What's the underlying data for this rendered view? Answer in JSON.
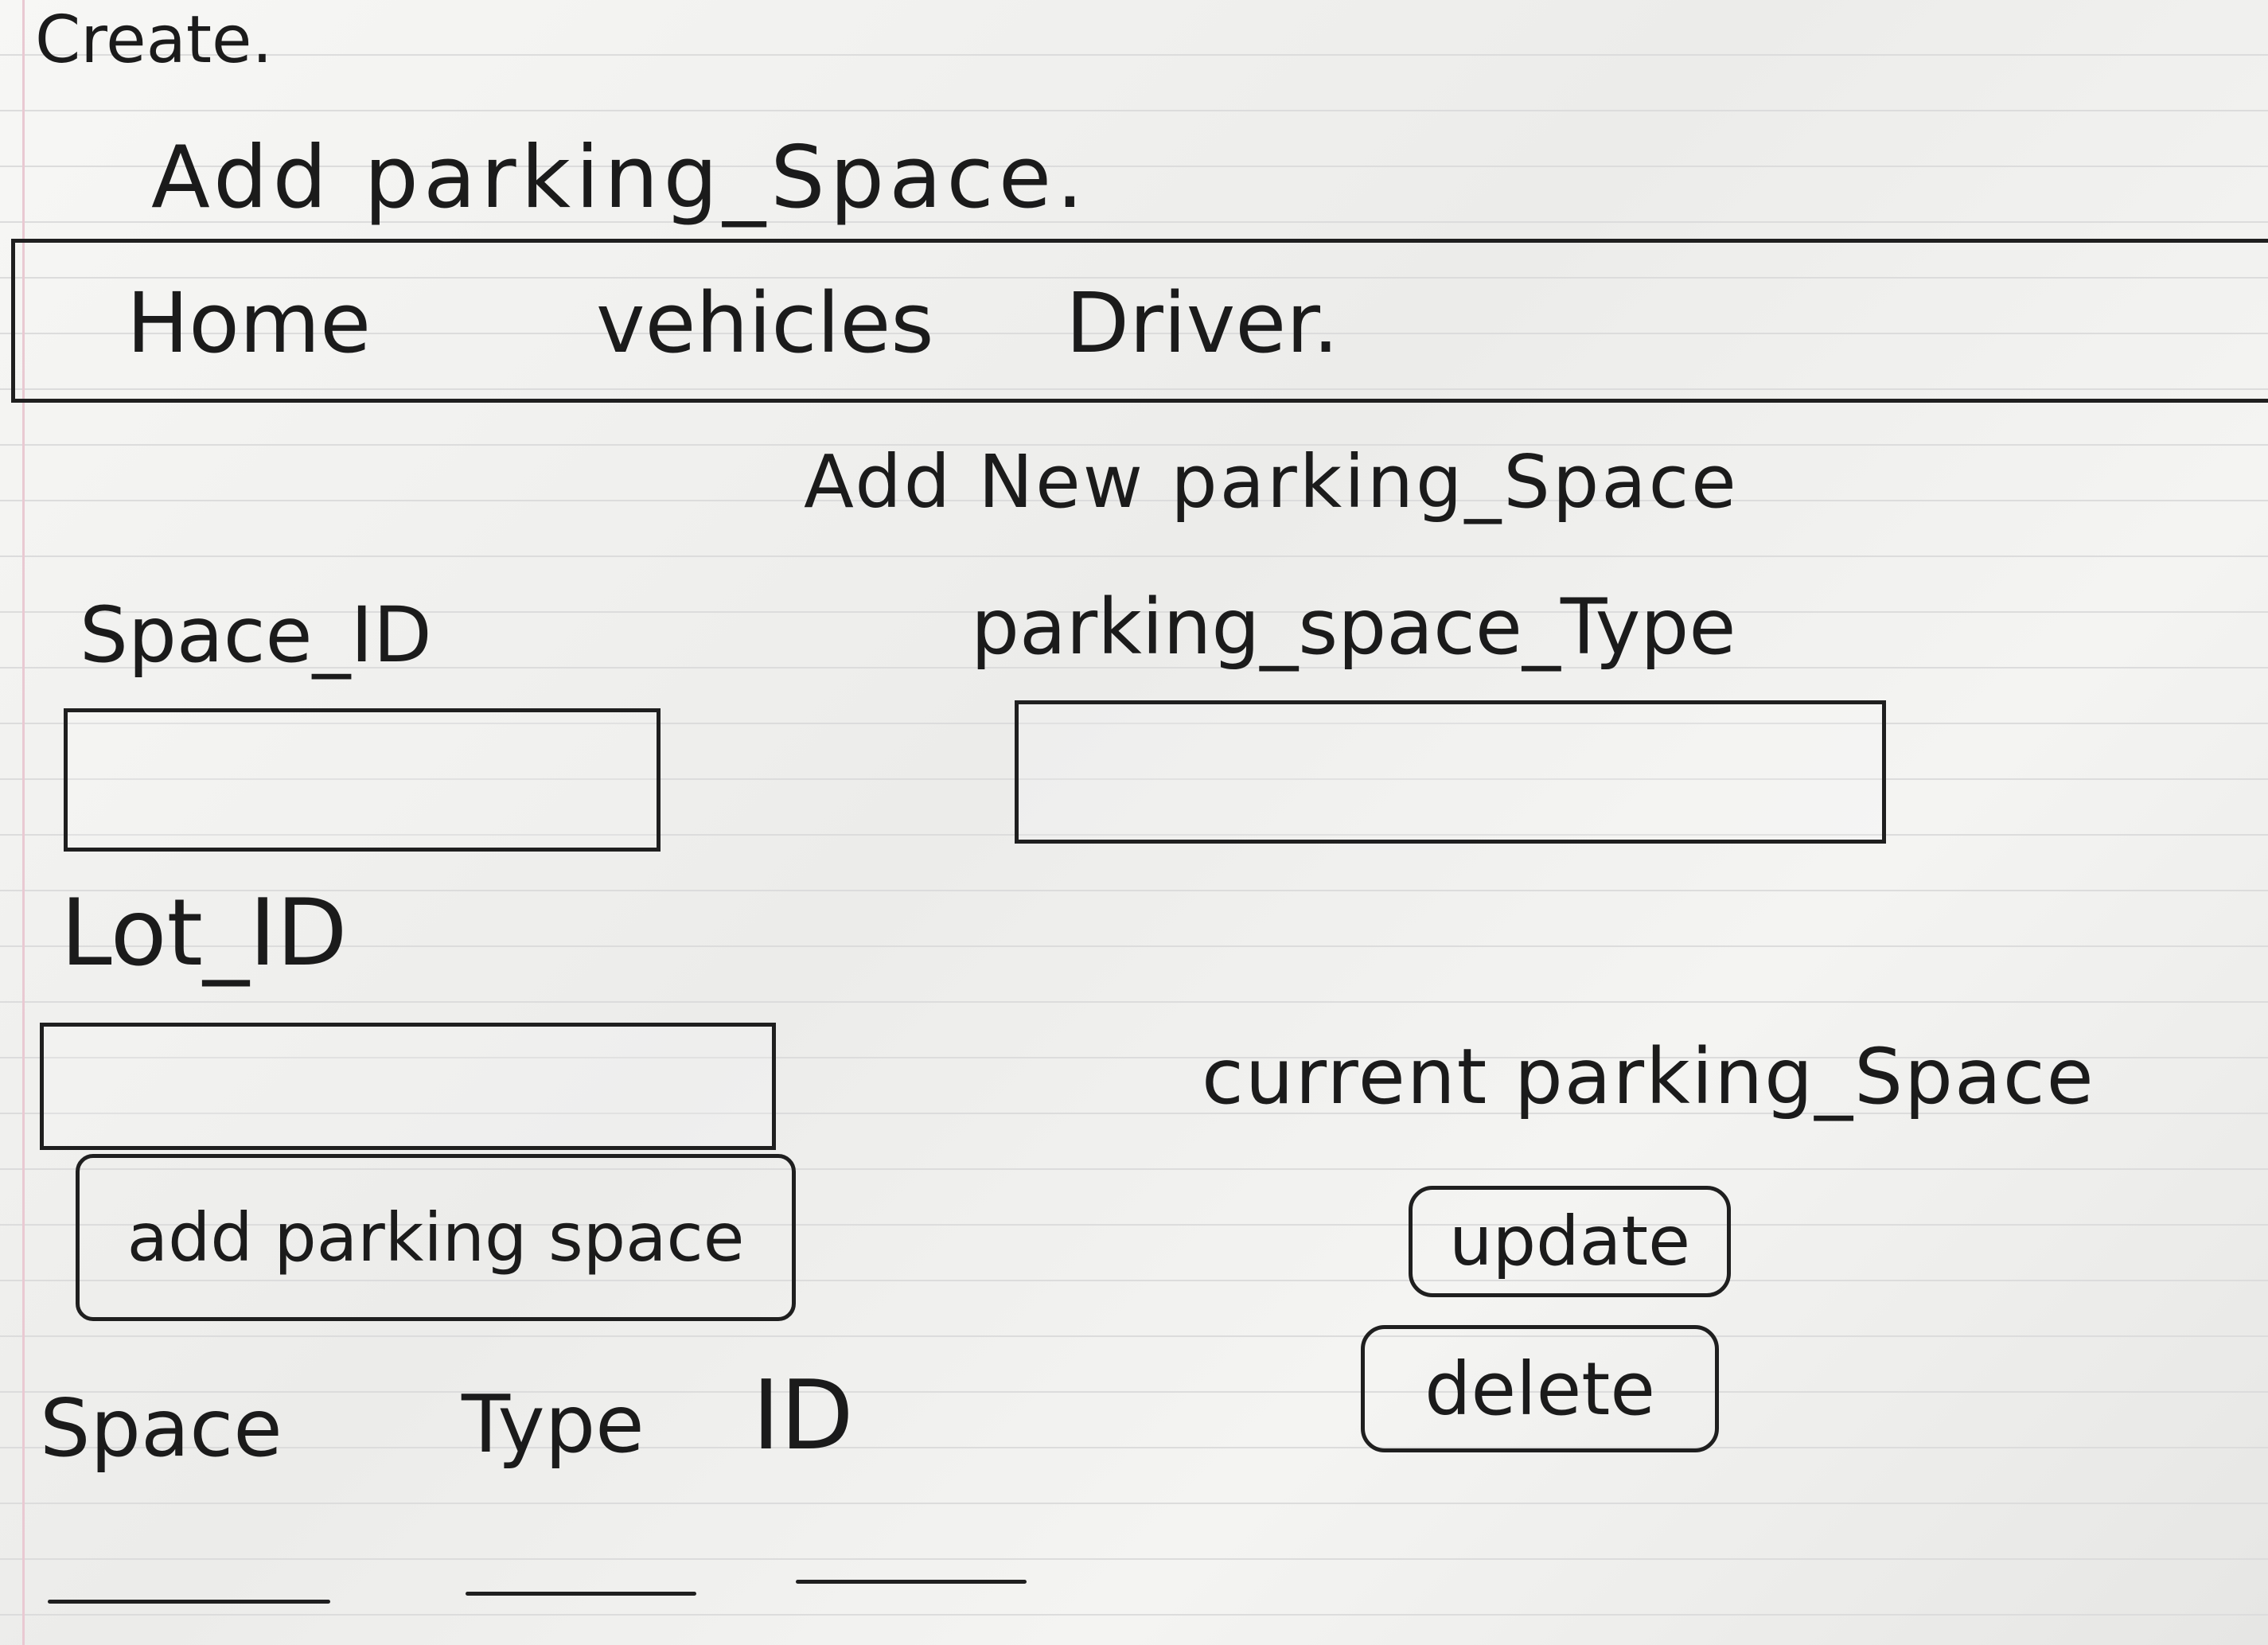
{
  "header": {
    "create_label": "Create.",
    "page_title": "Add parking_Space."
  },
  "nav": {
    "items": [
      "Home",
      "vehicles",
      "Driver."
    ]
  },
  "form": {
    "title": "Add New parking_Space",
    "space_id_label": "Space_ID",
    "space_type_label": "parking_space_Type",
    "lot_id_label": "Lot_ID",
    "space_id_value": "",
    "space_type_value": "",
    "lot_id_value": "",
    "add_button_label": "add parking space"
  },
  "current": {
    "title": "current parking_Space",
    "update_label": "update",
    "delete_label": "delete"
  },
  "table": {
    "columns": [
      "Space",
      "Type",
      "ID"
    ]
  }
}
